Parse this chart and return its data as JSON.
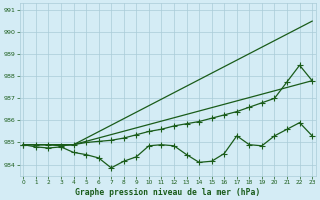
{
  "background_color": "#d4ecf5",
  "grid_color": "#aaccd8",
  "line_color": "#1a5c1a",
  "title": "Graphe pression niveau de la mer (hPa)",
  "xlim": [
    -0.3,
    23.3
  ],
  "ylim": [
    983.5,
    991.3
  ],
  "yticks": [
    984,
    985,
    986,
    987,
    988,
    989,
    990,
    991
  ],
  "xticks": [
    0,
    1,
    2,
    3,
    4,
    5,
    6,
    7,
    8,
    9,
    10,
    11,
    12,
    13,
    14,
    15,
    16,
    17,
    18,
    19,
    20,
    21,
    22,
    23
  ],
  "series": [
    {
      "name": "line1_steep_no_marker",
      "x": [
        0,
        4,
        23
      ],
      "y": [
        984.9,
        984.9,
        990.5
      ],
      "marker": false
    },
    {
      "name": "line2_moderate_no_marker",
      "x": [
        0,
        4,
        23
      ],
      "y": [
        984.9,
        984.9,
        987.8
      ],
      "marker": false
    },
    {
      "name": "line3_flat_rise_marker",
      "x": [
        0,
        1,
        2,
        3,
        4,
        5,
        6,
        7,
        8,
        9,
        10,
        11,
        12,
        13,
        14,
        15,
        16,
        17,
        18,
        19,
        20,
        21,
        22,
        23
      ],
      "y": [
        984.9,
        984.9,
        984.9,
        984.85,
        984.9,
        985.0,
        985.05,
        985.1,
        985.2,
        985.35,
        985.5,
        985.6,
        985.75,
        985.85,
        985.95,
        986.1,
        986.25,
        986.4,
        986.6,
        986.8,
        987.0,
        987.75,
        988.5,
        987.8
      ],
      "marker": true
    },
    {
      "name": "line4_dip_marker",
      "x": [
        0,
        1,
        2,
        3,
        4,
        5,
        6,
        7,
        8,
        9,
        10,
        11,
        12,
        13,
        14,
        15,
        16,
        17,
        18,
        19,
        20,
        21,
        22,
        23
      ],
      "y": [
        984.9,
        984.8,
        984.75,
        984.8,
        984.55,
        984.45,
        984.3,
        983.85,
        984.15,
        984.35,
        984.85,
        984.9,
        984.85,
        984.45,
        984.1,
        984.15,
        984.5,
        985.3,
        984.9,
        984.85,
        985.3,
        985.6,
        985.9,
        985.3
      ],
      "marker": true
    }
  ]
}
